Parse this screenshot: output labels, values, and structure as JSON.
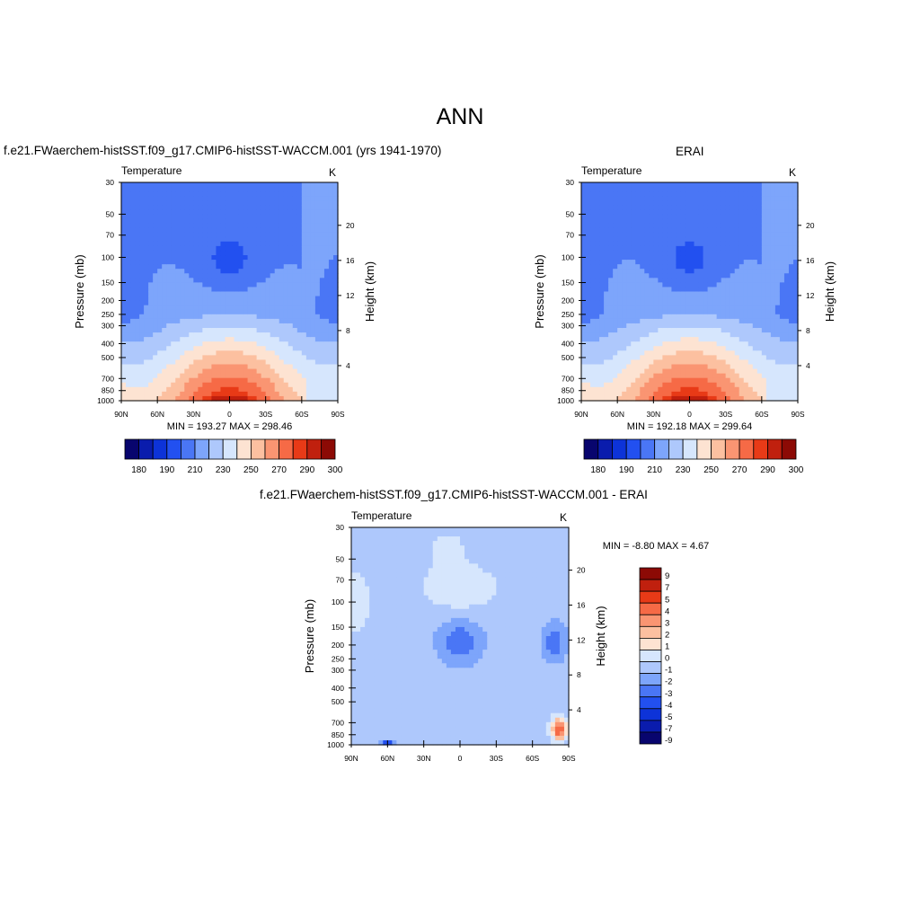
{
  "figure": {
    "title": "ANN",
    "variable": "Temperature",
    "units": "K",
    "y_left_label": "Pressure (mb)",
    "y_right_label": "Height (km)"
  },
  "colors": {
    "abs_palette": [
      "#08056e",
      "#0a1cad",
      "#0d33d8",
      "#2250f0",
      "#4a76f5",
      "#7da5fb",
      "#aec8fc",
      "#d6e6fd",
      "#fde3d2",
      "#fcc0a0",
      "#fa9572",
      "#f66a46",
      "#e83a17",
      "#c0200e",
      "#8c0a05"
    ],
    "diff_palette": [
      "#08056e",
      "#0a1cad",
      "#0d33d8",
      "#2250f0",
      "#4a76f5",
      "#7da5fb",
      "#aec8fc",
      "#d6e6fd",
      "#fde3d2",
      "#fcc0a0",
      "#fa9572",
      "#f66a46",
      "#e83a17",
      "#c0200e",
      "#8c0a05"
    ]
  },
  "chart_data": [
    {
      "type": "heatmap",
      "panel": "model",
      "title": "f.e21.FWaerchem-histSST.f09_g17.CMIP6-histSST-WACCM.001 (yrs 1941-1970)",
      "subtitle_left": "Temperature",
      "subtitle_right": "K",
      "xlabel": "",
      "ylabel": "Pressure (mb)",
      "ylabel_right": "Height (km)",
      "x_ticks": [
        "90N",
        "60N",
        "30N",
        "0",
        "30S",
        "60S",
        "90S"
      ],
      "y_ticks": [
        "30",
        "50",
        "70",
        "100",
        "150",
        "200",
        "250",
        "300",
        "400",
        "500",
        "700",
        "850",
        "1000"
      ],
      "y_ticks_right": [
        "4",
        "8",
        "12",
        "16",
        "20"
      ],
      "y_scale": "log",
      "ylim": [
        1000,
        30
      ],
      "xlim": [
        90,
        -90
      ],
      "stats": "MIN = 193.27  MAX = 298.46",
      "min": 193.27,
      "max": 298.46,
      "colorbar": {
        "orientation": "horizontal",
        "levels": [
          "180",
          "190",
          "210",
          "230",
          "250",
          "270",
          "290",
          "300"
        ]
      }
    },
    {
      "type": "heatmap",
      "panel": "obs",
      "title": "ERAI",
      "subtitle_left": "Temperature",
      "subtitle_right": "K",
      "xlabel": "",
      "ylabel": "Pressure (mb)",
      "ylabel_right": "Height (km)",
      "x_ticks": [
        "90N",
        "60N",
        "30N",
        "0",
        "30S",
        "60S",
        "90S"
      ],
      "y_ticks": [
        "30",
        "50",
        "70",
        "100",
        "150",
        "200",
        "250",
        "300",
        "400",
        "500",
        "700",
        "850",
        "1000"
      ],
      "y_ticks_right": [
        "4",
        "8",
        "12",
        "16",
        "20"
      ],
      "y_scale": "log",
      "ylim": [
        1000,
        30
      ],
      "xlim": [
        90,
        -90
      ],
      "stats": "MIN = 192.18  MAX = 299.64",
      "min": 192.18,
      "max": 299.64,
      "colorbar": {
        "orientation": "horizontal",
        "levels": [
          "180",
          "190",
          "210",
          "230",
          "250",
          "270",
          "290",
          "300"
        ]
      }
    },
    {
      "type": "heatmap",
      "panel": "diff",
      "title": "f.e21.FWaerchem-histSST.f09_g17.CMIP6-histSST-WACCM.001 - ERAI",
      "subtitle_left": "Temperature",
      "subtitle_right": "K",
      "xlabel": "",
      "ylabel": "Pressure (mb)",
      "ylabel_right": "Height (km)",
      "x_ticks": [
        "90N",
        "60N",
        "30N",
        "0",
        "30S",
        "60S",
        "90S"
      ],
      "y_ticks": [
        "30",
        "50",
        "70",
        "100",
        "150",
        "200",
        "250",
        "300",
        "400",
        "500",
        "700",
        "850",
        "1000"
      ],
      "y_ticks_right": [
        "4",
        "8",
        "12",
        "16",
        "20"
      ],
      "y_scale": "log",
      "ylim": [
        1000,
        30
      ],
      "xlim": [
        90,
        -90
      ],
      "stats": "MIN =  -8.80  MAX =   4.67",
      "min": -8.8,
      "max": 4.67,
      "colorbar": {
        "orientation": "vertical",
        "levels": [
          "9",
          "7",
          "5",
          "4",
          "3",
          "2",
          "1",
          "0",
          "-1",
          "-2",
          "-3",
          "-4",
          "-5",
          "-7",
          "-9"
        ]
      }
    }
  ]
}
